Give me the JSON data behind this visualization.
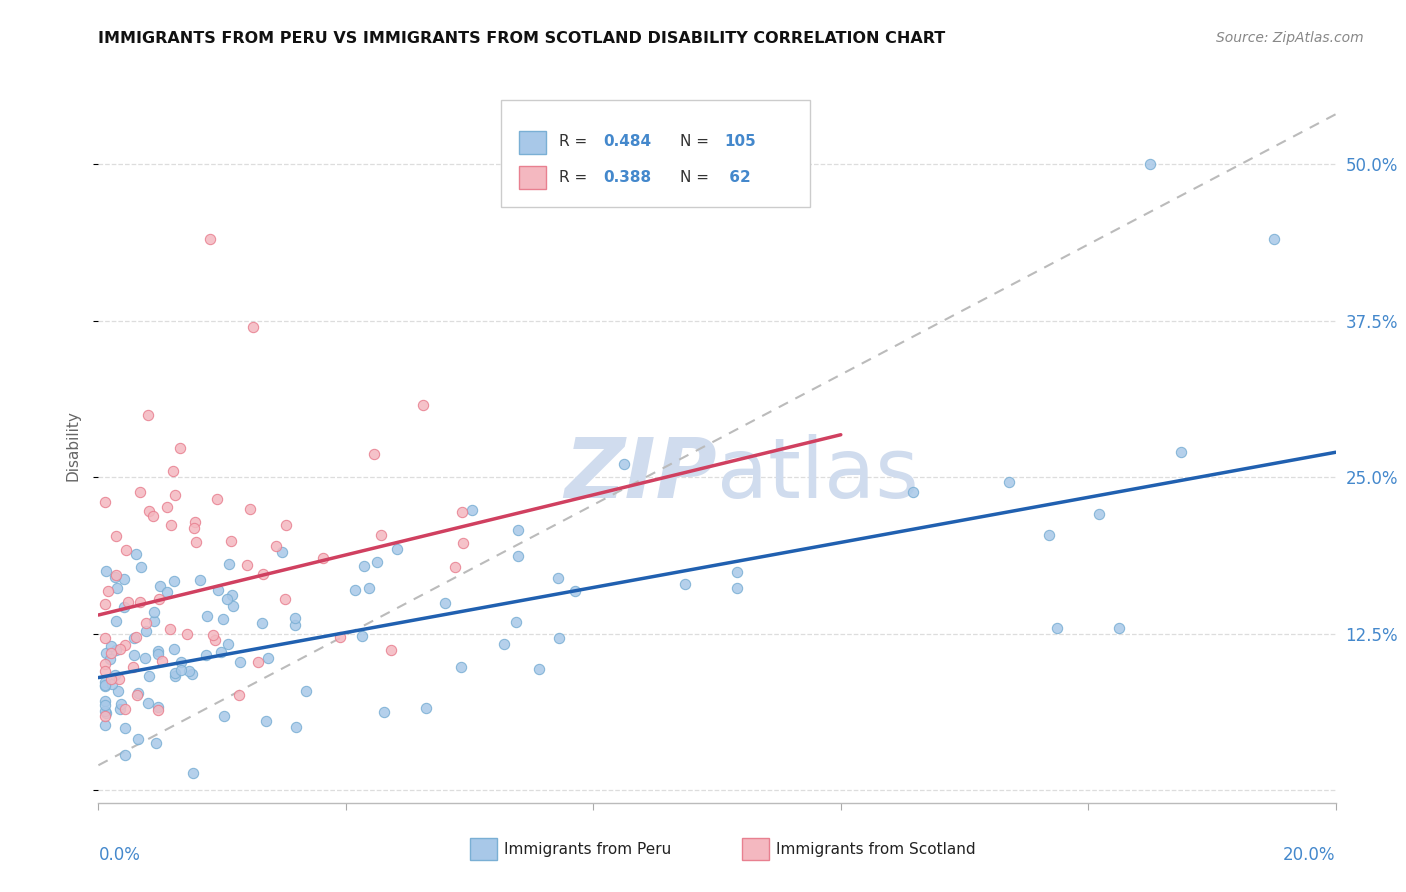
{
  "title": "IMMIGRANTS FROM PERU VS IMMIGRANTS FROM SCOTLAND DISABILITY CORRELATION CHART",
  "source": "Source: ZipAtlas.com",
  "ylabel": "Disability",
  "peru_R": 0.484,
  "peru_N": 105,
  "scotland_R": 0.388,
  "scotland_N": 62,
  "peru_dot_color": "#a8c8e8",
  "peru_dot_edge": "#7aafd4",
  "scotland_dot_color": "#f4b8c0",
  "scotland_dot_edge": "#e88090",
  "peru_line_color": "#2060b0",
  "scotland_line_color": "#d04060",
  "dashed_line_color": "#bbbbbb",
  "grid_color": "#dddddd",
  "background_color": "#ffffff",
  "watermark_color": "#d0dcee",
  "legend_peru_label": "Immigrants from Peru",
  "legend_scotland_label": "Immigrants from Scotland",
  "ytick_color": "#4488cc",
  "xtick_color": "#4488cc",
  "ylabel_color": "#666666",
  "title_color": "#111111",
  "source_color": "#888888"
}
